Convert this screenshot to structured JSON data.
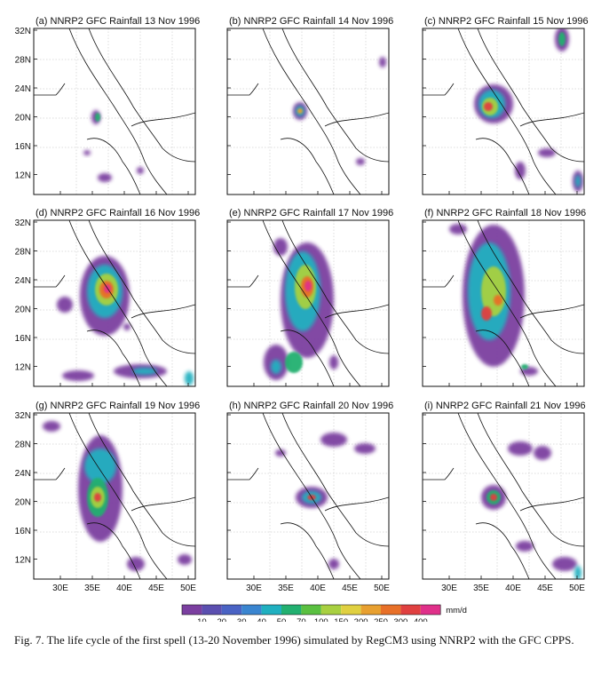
{
  "panels": [
    {
      "title": "(a) NNRP2 GFC Rainfall 13 Nov 1996"
    },
    {
      "title": "(b) NNRP2 GFC Rainfall 14 Nov 1996"
    },
    {
      "title": "(c) NNRP2 GFC Rainfall 15 Nov 1996"
    },
    {
      "title": "(d) NNRP2 GFC Rainfall 16 Nov 1996"
    },
    {
      "title": "(e) NNRP2 GFC Rainfall 17 Nov 1996"
    },
    {
      "title": "(f) NNRP2 GFC Rainfall 18 Nov 1996"
    },
    {
      "title": "(g) NNRP2 GFC Rainfall 19 Nov 1996"
    },
    {
      "title": "(h) NNRP2 GFC Rainfall 20 Nov 1996"
    },
    {
      "title": "(i) NNRP2 GFC Rainfall 21 Nov 1996"
    }
  ],
  "axes": {
    "lat_ticks": [
      "32N",
      "28N",
      "24N",
      "20N",
      "16N",
      "12N"
    ],
    "lon_ticks": [
      "30E",
      "35E",
      "40E",
      "45E",
      "50E"
    ]
  },
  "colorbar": {
    "levels": [
      "10",
      "20",
      "30",
      "40",
      "50",
      "70",
      "100",
      "150",
      "200",
      "250",
      "300",
      "400"
    ],
    "unit": "mm/d",
    "colors": [
      "#7b3fa0",
      "#5b4fb0",
      "#4a63c4",
      "#3a85d0",
      "#20b0c0",
      "#22b070",
      "#5ac040",
      "#a8d040",
      "#e0d040",
      "#e8a030",
      "#e87028",
      "#e04040",
      "#e0308a"
    ]
  },
  "caption": "Fig. 7. The life cycle of the first spell (13-20 November 1996) simulated by RegCM3 using NNRP2 with the GFC CPPS."
}
